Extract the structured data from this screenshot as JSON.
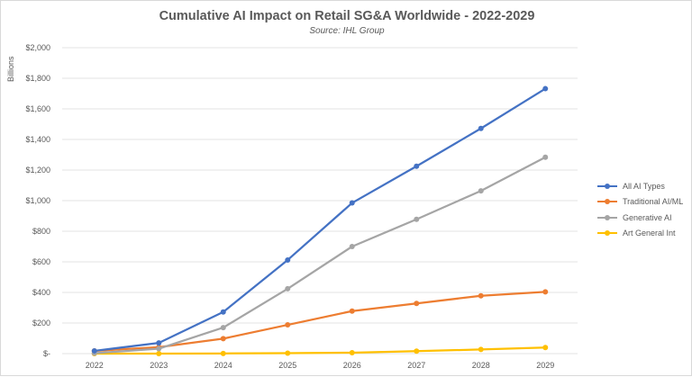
{
  "chart_data": {
    "type": "line",
    "title": "Cumulative AI Impact on Retail SG&A Worldwide - 2022-2029",
    "subtitle": "Source: IHL Group",
    "ylabel": "Billions",
    "xlabel": "",
    "categories": [
      "2022",
      "2023",
      "2024",
      "2025",
      "2026",
      "2027",
      "2028",
      "2029"
    ],
    "ylim": [
      0,
      2000
    ],
    "yticks": [
      0,
      200,
      400,
      600,
      800,
      1000,
      1200,
      1400,
      1600,
      1800,
      2000
    ],
    "ytick_labels": [
      "$-",
      "$200",
      "$400",
      "$600",
      "$800",
      "$1,000",
      "$1,200",
      "$1,400",
      "$1,600",
      "$1,800",
      "$2,000"
    ],
    "grid": true,
    "legend_position": "right",
    "series": [
      {
        "name": "All AI Types",
        "color": "#4472C4",
        "values": [
          18,
          70,
          272,
          612,
          985,
          1225,
          1472,
          1732
        ]
      },
      {
        "name": "Traditional AI/ML",
        "color": "#ED7D31",
        "values": [
          18,
          42,
          98,
          188,
          278,
          328,
          378,
          404
        ]
      },
      {
        "name": "Generative AI",
        "color": "#A5A5A5",
        "values": [
          3,
          32,
          170,
          424,
          700,
          878,
          1064,
          1284
        ]
      },
      {
        "name": "Art General Int",
        "color": "#FFC000",
        "values": [
          0,
          0,
          1,
          3,
          6,
          16,
          27,
          40
        ]
      }
    ]
  }
}
